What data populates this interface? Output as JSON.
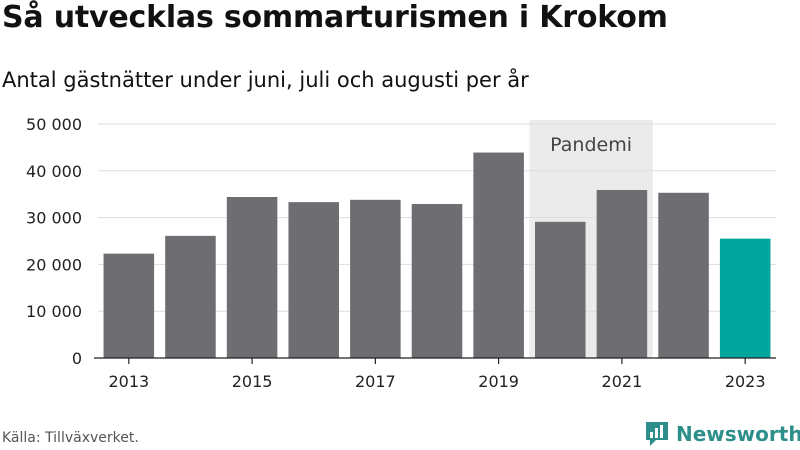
{
  "header": {
    "title": "Så utvecklas sommarturismen i Krokom",
    "subtitle": "Antal gästnätter under juni, juli och augusti per år"
  },
  "footer": {
    "source": "Källa: Tillväxverket.",
    "brand": "Newsworthy"
  },
  "colors": {
    "bar": "#6e6d72",
    "highlight": "#00a69c",
    "band": "#ebebeb",
    "grid": "#dddddd",
    "brand": "#2e8f8a"
  },
  "chart_data": {
    "type": "bar",
    "categories": [
      "2013",
      "2014",
      "2015",
      "2016",
      "2017",
      "2018",
      "2019",
      "2020",
      "2021",
      "2022",
      "2023"
    ],
    "values": [
      22300,
      26100,
      34400,
      33300,
      33800,
      32900,
      43900,
      29100,
      35900,
      35300,
      25500
    ],
    "highlight_index": 10,
    "ylim": [
      0,
      50000
    ],
    "yticks": [
      0,
      10000,
      20000,
      30000,
      40000,
      50000
    ],
    "ytick_labels": [
      "0",
      "10 000",
      "20 000",
      "30 000",
      "40 000",
      "50 000"
    ],
    "xtick_labels": [
      "2013",
      "2015",
      "2017",
      "2019",
      "2021",
      "2023"
    ],
    "grid": true,
    "annotation": {
      "label": "Pandemi",
      "from": "2020",
      "to": "2021"
    },
    "title": "Så utvecklas sommarturismen i Krokom",
    "subtitle": "Antal gästnätter under juni, juli och augusti per år",
    "xlabel": "",
    "ylabel": ""
  }
}
